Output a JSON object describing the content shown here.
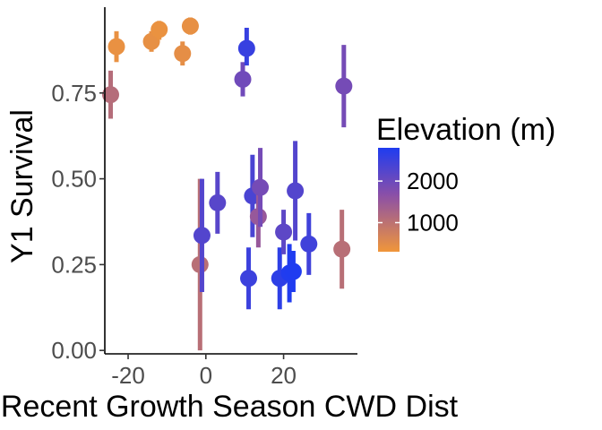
{
  "chart_data": {
    "type": "scatter",
    "title": "",
    "xlabel": "Recent Growth Season CWD Dist",
    "ylabel": "Y1 Survival",
    "xlim": [
      -26,
      39
    ],
    "ylim": [
      -0.01,
      1.0
    ],
    "xticks": [
      -20,
      0,
      20
    ],
    "xtick_labels": [
      "-20",
      "0",
      "20"
    ],
    "yticks": [
      0.0,
      0.25,
      0.5,
      0.75
    ],
    "ytick_labels": [
      "0.00",
      "0.25",
      "0.50",
      "0.75"
    ],
    "grid": false,
    "legend": {
      "title": "Elevation (m)",
      "placement": "right",
      "range": [
        300,
        2800
      ],
      "ticks": [
        2000,
        1000
      ],
      "tick_labels": [
        "2000",
        "1000"
      ],
      "colors": {
        "low": "#f0963a",
        "mid": "#8a4fa8",
        "high": "#1f3cf0"
      }
    },
    "points": [
      {
        "x": -24.5,
        "y": 0.745,
        "lo": 0.675,
        "hi": 0.815,
        "elev": 1100
      },
      {
        "x": -23.0,
        "y": 0.885,
        "lo": 0.84,
        "hi": 0.93,
        "elev": 400
      },
      {
        "x": -14.0,
        "y": 0.9,
        "lo": 0.87,
        "hi": 0.93,
        "elev": 420
      },
      {
        "x": -12.0,
        "y": 0.935,
        "lo": 0.905,
        "hi": 0.96,
        "elev": 380
      },
      {
        "x": -6.0,
        "y": 0.865,
        "lo": 0.83,
        "hi": 0.9,
        "elev": 450
      },
      {
        "x": -4.0,
        "y": 0.945,
        "lo": 0.92,
        "hi": 0.97,
        "elev": 420
      },
      {
        "x": -1.5,
        "y": 0.25,
        "lo": 0.0,
        "hi": 0.5,
        "elev": 1050
      },
      {
        "x": -1.0,
        "y": 0.335,
        "lo": 0.17,
        "hi": 0.5,
        "elev": 2250
      },
      {
        "x": 3.0,
        "y": 0.43,
        "lo": 0.34,
        "hi": 0.52,
        "elev": 2200
      },
      {
        "x": 9.5,
        "y": 0.79,
        "lo": 0.74,
        "hi": 0.84,
        "elev": 1950
      },
      {
        "x": 10.5,
        "y": 0.88,
        "lo": 0.83,
        "hi": 0.94,
        "elev": 2550
      },
      {
        "x": 11.0,
        "y": 0.21,
        "lo": 0.12,
        "hi": 0.3,
        "elev": 2500
      },
      {
        "x": 12.0,
        "y": 0.45,
        "lo": 0.33,
        "hi": 0.57,
        "elev": 2350
      },
      {
        "x": 13.5,
        "y": 0.39,
        "lo": 0.3,
        "hi": 0.48,
        "elev": 1500
      },
      {
        "x": 14.0,
        "y": 0.475,
        "lo": 0.36,
        "hi": 0.59,
        "elev": 1900
      },
      {
        "x": 19.0,
        "y": 0.21,
        "lo": 0.12,
        "hi": 0.3,
        "elev": 2650
      },
      {
        "x": 20.0,
        "y": 0.345,
        "lo": 0.28,
        "hi": 0.41,
        "elev": 2150
      },
      {
        "x": 21.5,
        "y": 0.225,
        "lo": 0.14,
        "hi": 0.31,
        "elev": 2780
      },
      {
        "x": 22.5,
        "y": 0.23,
        "lo": 0.17,
        "hi": 0.29,
        "elev": 2800
      },
      {
        "x": 23.0,
        "y": 0.465,
        "lo": 0.32,
        "hi": 0.61,
        "elev": 2250
      },
      {
        "x": 26.5,
        "y": 0.31,
        "lo": 0.22,
        "hi": 0.4,
        "elev": 2450
      },
      {
        "x": 35.0,
        "y": 0.295,
        "lo": 0.18,
        "hi": 0.41,
        "elev": 1050
      },
      {
        "x": 35.5,
        "y": 0.77,
        "lo": 0.65,
        "hi": 0.89,
        "elev": 1900
      }
    ]
  }
}
